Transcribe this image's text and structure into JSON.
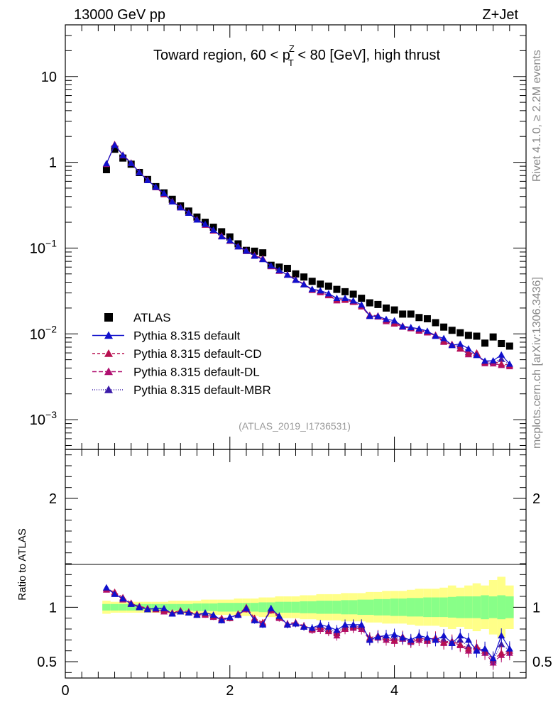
{
  "header": {
    "energy_label": "13000 GeV pp",
    "process_label": "Z+Jet"
  },
  "side_labels": {
    "rivet": "Rivet 4.1.0, ≥ 2.2M events",
    "mcplots": "mcplots.cern.ch [arXiv:1306.3436]"
  },
  "chart_data": {
    "type": "scatter",
    "title_parts": {
      "pre": "Toward region, 60 < p",
      "sup": "Z",
      "sub": "T",
      "post": " < 80 [GeV], high thrust"
    },
    "watermark": "(ATLAS_2019_I1736531)",
    "xlim": [
      0,
      5.6
    ],
    "x_ticks": [
      "0",
      "2",
      "4"
    ],
    "x_tick_values": [
      0,
      2,
      4
    ],
    "main_panel": {
      "yscale": "log",
      "ylim": [
        0.00045,
        40
      ],
      "y_ticks": [
        {
          "value": 10,
          "base": "10",
          "exp": ""
        },
        {
          "value": 1,
          "base": "1",
          "exp": ""
        },
        {
          "value": 0.1,
          "base": "10",
          "exp": "−1"
        },
        {
          "value": 0.01,
          "base": "10",
          "exp": "−2"
        },
        {
          "value": 0.001,
          "base": "10",
          "exp": "−3"
        }
      ]
    },
    "ratio_panel": {
      "ylabel": "Ratio to ATLAS",
      "ylim": [
        0.35,
        2.45
      ],
      "y_ticks": [
        "0.5",
        "1",
        "2"
      ],
      "y_tick_values": [
        0.5,
        1,
        2
      ]
    },
    "x": [
      0.5,
      0.6,
      0.7,
      0.8,
      0.9,
      1.0,
      1.1,
      1.2,
      1.3,
      1.4,
      1.5,
      1.6,
      1.7,
      1.8,
      1.9,
      2.0,
      2.1,
      2.2,
      2.3,
      2.4,
      2.5,
      2.6,
      2.7,
      2.8,
      2.9,
      3.0,
      3.1,
      3.2,
      3.3,
      3.4,
      3.5,
      3.6,
      3.7,
      3.8,
      3.9,
      4.0,
      4.1,
      4.2,
      4.3,
      4.4,
      4.5,
      4.6,
      4.7,
      4.8,
      4.9,
      5.0,
      5.1,
      5.2,
      5.3,
      5.4
    ],
    "data_series": {
      "name": "ATLAS",
      "values": [
        0.82,
        1.42,
        1.12,
        0.95,
        0.76,
        0.63,
        0.52,
        0.44,
        0.37,
        0.31,
        0.27,
        0.23,
        0.2,
        0.175,
        0.155,
        0.135,
        0.112,
        0.094,
        0.092,
        0.088,
        0.063,
        0.06,
        0.058,
        0.05,
        0.046,
        0.041,
        0.038,
        0.036,
        0.033,
        0.031,
        0.029,
        0.026,
        0.023,
        0.022,
        0.02,
        0.019,
        0.017,
        0.017,
        0.0155,
        0.015,
        0.0135,
        0.012,
        0.011,
        0.0103,
        0.0096,
        0.0094,
        0.0078,
        0.0092,
        0.0077,
        0.0072
      ]
    },
    "mc_ratio": {
      "default": [
        1.18,
        1.12,
        1.08,
        1.03,
        1.0,
        0.98,
        0.99,
        0.99,
        0.94,
        0.96,
        0.95,
        0.93,
        0.95,
        0.93,
        0.88,
        0.91,
        0.93,
        0.99,
        0.88,
        0.84,
        0.99,
        0.92,
        0.84,
        0.85,
        0.82,
        0.81,
        0.84,
        0.82,
        0.79,
        0.84,
        0.84,
        0.84,
        0.7,
        0.73,
        0.74,
        0.75,
        0.72,
        0.7,
        0.74,
        0.72,
        0.7,
        0.74,
        0.67,
        0.74,
        0.7,
        0.6,
        0.62,
        0.53,
        0.74,
        0.62
      ],
      "cd": [
        1.17,
        1.14,
        1.09,
        1.04,
        1.0,
        0.99,
        0.98,
        0.97,
        0.95,
        0.97,
        0.96,
        0.94,
        0.94,
        0.92,
        0.9,
        0.9,
        0.94,
        1.0,
        0.9,
        0.86,
        0.98,
        0.91,
        0.85,
        0.86,
        0.83,
        0.8,
        0.82,
        0.79,
        0.76,
        0.81,
        0.82,
        0.82,
        0.72,
        0.74,
        0.72,
        0.7,
        0.73,
        0.69,
        0.72,
        0.7,
        0.72,
        0.68,
        0.69,
        0.66,
        0.62,
        0.64,
        0.6,
        0.52,
        0.58,
        0.6
      ],
      "dl": [
        1.16,
        1.13,
        1.07,
        1.03,
        1.01,
        0.99,
        0.98,
        0.96,
        0.95,
        0.96,
        0.95,
        0.93,
        0.93,
        0.91,
        0.89,
        0.9,
        0.93,
        0.98,
        0.89,
        0.85,
        0.97,
        0.9,
        0.84,
        0.85,
        0.82,
        0.79,
        0.8,
        0.78,
        0.74,
        0.8,
        0.81,
        0.8,
        0.7,
        0.72,
        0.7,
        0.69,
        0.71,
        0.68,
        0.7,
        0.69,
        0.7,
        0.67,
        0.68,
        0.65,
        0.6,
        0.63,
        0.58,
        0.49,
        0.56,
        0.58
      ],
      "mbr": [
        1.18,
        1.13,
        1.08,
        1.03,
        1.0,
        0.98,
        0.99,
        0.98,
        0.94,
        0.96,
        0.95,
        0.93,
        0.94,
        0.92,
        0.88,
        0.9,
        0.93,
        0.99,
        0.88,
        0.85,
        0.98,
        0.91,
        0.84,
        0.85,
        0.82,
        0.8,
        0.83,
        0.8,
        0.77,
        0.82,
        0.83,
        0.83,
        0.71,
        0.73,
        0.72,
        0.72,
        0.71,
        0.69,
        0.72,
        0.71,
        0.71,
        0.7,
        0.67,
        0.7,
        0.64,
        0.61,
        0.6,
        0.51,
        0.66,
        0.6
      ]
    },
    "mc_series": [
      {
        "key": "default",
        "name": "Pythia 8.315 default",
        "color": "#1010cc",
        "dash": "",
        "marker": "triangle"
      },
      {
        "key": "cd",
        "name": "Pythia 8.315 default-CD",
        "color": "#b81050",
        "dash": "4,3",
        "marker": "triangle"
      },
      {
        "key": "dl",
        "name": "Pythia 8.315 default-DL",
        "color": "#b01070",
        "dash": "6,3",
        "marker": "triangle"
      },
      {
        "key": "mbr",
        "name": "Pythia 8.315 default-MBR",
        "color": "#3a1aa8",
        "dash": "1,2",
        "marker": "triangle"
      }
    ],
    "uncertainty_bands": {
      "inner_color": "#88ff88",
      "outer_color": "#ffff88",
      "inner_halfwidth": [
        0.03,
        0.03,
        0.03,
        0.03,
        0.03,
        0.03,
        0.03,
        0.03,
        0.03,
        0.03,
        0.03,
        0.035,
        0.035,
        0.035,
        0.04,
        0.04,
        0.04,
        0.04,
        0.04,
        0.045,
        0.045,
        0.05,
        0.05,
        0.05,
        0.055,
        0.055,
        0.06,
        0.06,
        0.06,
        0.065,
        0.065,
        0.07,
        0.07,
        0.075,
        0.075,
        0.08,
        0.08,
        0.085,
        0.085,
        0.09,
        0.09,
        0.09,
        0.095,
        0.1,
        0.1,
        0.1,
        0.11,
        0.1,
        0.11,
        0.1
      ],
      "outer_halfwidth": [
        0.06,
        0.05,
        0.05,
        0.05,
        0.05,
        0.05,
        0.05,
        0.05,
        0.06,
        0.06,
        0.06,
        0.06,
        0.07,
        0.07,
        0.07,
        0.07,
        0.08,
        0.08,
        0.08,
        0.09,
        0.09,
        0.1,
        0.1,
        0.1,
        0.11,
        0.11,
        0.12,
        0.12,
        0.12,
        0.13,
        0.13,
        0.13,
        0.14,
        0.14,
        0.15,
        0.15,
        0.15,
        0.16,
        0.17,
        0.17,
        0.17,
        0.18,
        0.2,
        0.18,
        0.2,
        0.22,
        0.2,
        0.25,
        0.28,
        0.2
      ]
    },
    "colors": {
      "axis": "#000000",
      "data_marker": "#000000",
      "watermark": "#999999"
    }
  }
}
